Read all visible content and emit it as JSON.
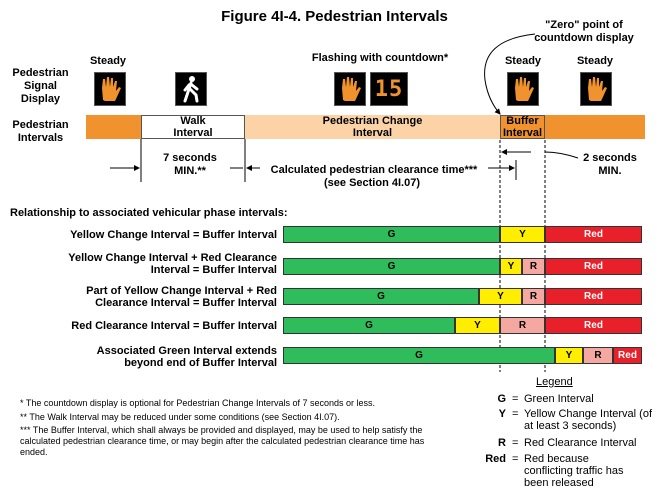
{
  "title": "Figure 4I-4.  Pedestrian Intervals",
  "zero_point_label": "\"Zero\" point of countdown display",
  "signal_row_label": "Pedestrian Signal Display",
  "signal_states": {
    "steady1": "Steady",
    "flashing": "Flashing with countdown*",
    "steady2": "Steady",
    "steady3": "Steady"
  },
  "countdown_value": "15",
  "interval_row_label": "Pedestrian Intervals",
  "intervals": {
    "walk": "Walk Interval",
    "change": "Pedestrian Change Interval",
    "buffer": "Buffer Interval"
  },
  "timing": {
    "walk_min": "7 seconds MIN.**",
    "clearance": "Calculated pedestrian clearance time***",
    "clearance_ref": "(see Section 4I.07)",
    "buffer_min": "2 seconds MIN."
  },
  "relationship_heading": "Relationship to associated vehicular phase intervals:",
  "phase_rows": [
    {
      "label": "Yellow Change Interval = Buffer Interval",
      "cells": [
        "G",
        "Y",
        "Red"
      ]
    },
    {
      "label": "Yellow Change Interval + Red Clearance Interval = Buffer Interval",
      "cells": [
        "G",
        "Y",
        "R",
        "Red"
      ]
    },
    {
      "label": "Part of Yellow Change Interval + Red Clearance Interval = Buffer Interval",
      "cells": [
        "G",
        "Y",
        "R",
        "Red"
      ]
    },
    {
      "label": "Red Clearance Interval = Buffer Interval",
      "cells": [
        "G",
        "Y",
        "R",
        "Red"
      ]
    },
    {
      "label": "Associated Green Interval extends beyond end of Buffer Interval",
      "cells": [
        "G",
        "Y",
        "R",
        "Red"
      ]
    }
  ],
  "notes": [
    "* The countdown display is optional for Pedestrian Change Intervals of 7 seconds or less.",
    "** The Walk Interval may be reduced under some conditions (see Section 4I.07).",
    "*** The Buffer Interval, which shall always be provided and displayed, may be used to help satisfy the calculated pedestrian clearance time, or may begin after the calculated pedestrian clearance time has ended."
  ],
  "legend": {
    "title": "Legend",
    "items": [
      {
        "key": "G",
        "eq": "=",
        "desc": "Green Interval"
      },
      {
        "key": "Y",
        "eq": "=",
        "desc": "Yellow Change Interval (of at least 3 seconds)"
      },
      {
        "key": "R",
        "eq": "=",
        "desc": "Red Clearance Interval"
      },
      {
        "key": "Red",
        "eq": "=",
        "desc": "Red because conflicting traffic has been released"
      }
    ]
  },
  "colors": {
    "steady_orange": "#f0922e",
    "change_peach": "#fcd3a6",
    "green": "#2ebd5a",
    "yellow": "#ffee00",
    "red_clearance": "#f4a8a0",
    "red": "#e8202a",
    "hand": "#f0922e",
    "countdown": "#f0922e"
  }
}
